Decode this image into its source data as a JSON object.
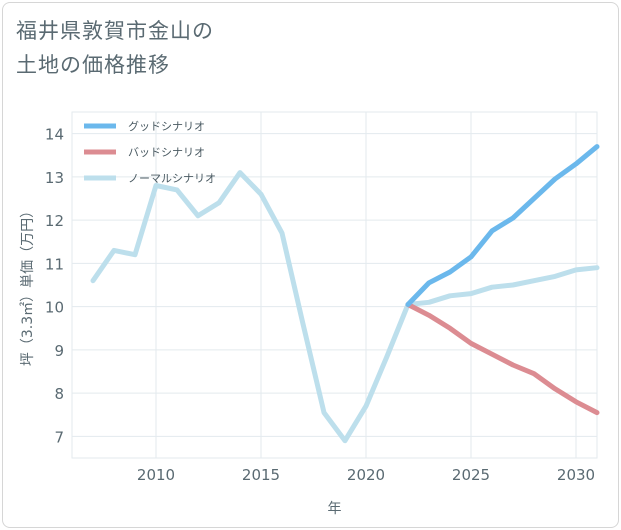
{
  "title": "福井県敦賀市金山の\n土地の価格推移",
  "chart_data": {
    "type": "line",
    "xlabel": "年",
    "ylabel": "坪（3.3㎡）単価（万円）",
    "xlim": [
      2006,
      2031
    ],
    "ylim": [
      6.5,
      14.5
    ],
    "xticks": [
      2010,
      2015,
      2020,
      2025,
      2030
    ],
    "yticks": [
      7,
      8,
      9,
      10,
      11,
      12,
      13,
      14
    ],
    "grid": true,
    "legend_position": "top-left",
    "series": [
      {
        "name": "グッドシナリオ",
        "color": "#6bb8ec",
        "x": [
          2022,
          2023,
          2024,
          2025,
          2026,
          2027,
          2028,
          2029,
          2030,
          2031
        ],
        "values": [
          10.05,
          10.55,
          10.8,
          11.15,
          11.75,
          12.05,
          12.5,
          12.95,
          13.3,
          13.7
        ]
      },
      {
        "name": "バッドシナリオ",
        "color": "#dc8c92",
        "x": [
          2022,
          2023,
          2024,
          2025,
          2026,
          2027,
          2028,
          2029,
          2030,
          2031
        ],
        "values": [
          10.05,
          9.8,
          9.5,
          9.15,
          8.9,
          8.65,
          8.45,
          8.1,
          7.8,
          7.55
        ]
      },
      {
        "name": "ノーマルシナリオ",
        "color": "#bddfec",
        "x": [
          2007,
          2008,
          2009,
          2010,
          2011,
          2012,
          2013,
          2014,
          2015,
          2016,
          2017,
          2018,
          2019,
          2020,
          2021,
          2022,
          2023,
          2024,
          2025,
          2026,
          2027,
          2028,
          2029,
          2030,
          2031
        ],
        "values": [
          10.6,
          11.3,
          11.2,
          12.8,
          12.7,
          12.1,
          12.4,
          13.1,
          12.6,
          11.7,
          9.6,
          7.55,
          6.9,
          7.7,
          8.85,
          10.05,
          10.1,
          10.25,
          10.3,
          10.45,
          10.5,
          10.6,
          10.7,
          10.85,
          10.9
        ]
      }
    ]
  }
}
